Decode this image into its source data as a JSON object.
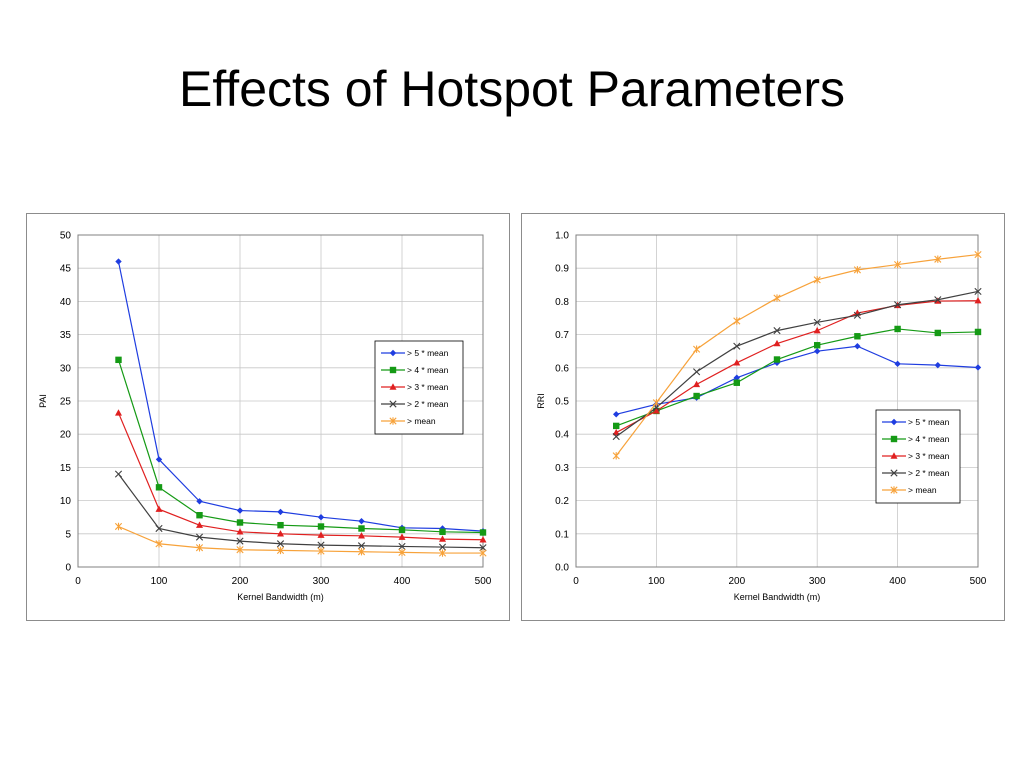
{
  "slide": {
    "title": "Effects of Hotspot Parameters"
  },
  "colors": {
    "gt5_mean": "#1f3de0",
    "gt4_mean": "#159a15",
    "gt3_mean": "#e02020",
    "gt2_mean": "#404040",
    "gt_mean": "#f7a23a",
    "gridline": "#c8c8c8",
    "plot_border": "#808080"
  },
  "chart_data": [
    {
      "type": "line",
      "title": "",
      "xlabel": "Kernel Bandwidth (m)",
      "ylabel": "PAI",
      "x": [
        50,
        100,
        150,
        200,
        250,
        300,
        350,
        400,
        450,
        500
      ],
      "xlim": [
        0,
        500
      ],
      "ylim": [
        0,
        50
      ],
      "xticks": [
        "0",
        "100",
        "200",
        "300",
        "400",
        "500"
      ],
      "yticks": [
        "0",
        "5",
        "10",
        "15",
        "20",
        "25",
        "30",
        "35",
        "40",
        "45",
        "50"
      ],
      "grid": true,
      "legend": "center-right",
      "series": [
        {
          "name": "> 5 * mean",
          "marker": "diamond",
          "values": [
            46.0,
            16.2,
            9.9,
            8.5,
            8.3,
            7.5,
            6.9,
            5.9,
            5.8,
            5.4
          ]
        },
        {
          "name": "> 4 * mean",
          "marker": "square",
          "values": [
            31.2,
            12.0,
            7.8,
            6.7,
            6.3,
            6.1,
            5.8,
            5.6,
            5.3,
            5.2
          ]
        },
        {
          "name": "> 3 * mean",
          "marker": "triangle",
          "values": [
            23.2,
            8.7,
            6.3,
            5.3,
            5.0,
            4.8,
            4.7,
            4.5,
            4.2,
            4.1
          ]
        },
        {
          "name": "> 2 * mean",
          "marker": "x",
          "values": [
            14.0,
            5.8,
            4.5,
            3.9,
            3.5,
            3.3,
            3.2,
            3.1,
            3.0,
            2.9
          ]
        },
        {
          "name": "> mean",
          "marker": "star",
          "values": [
            6.1,
            3.5,
            2.9,
            2.6,
            2.5,
            2.4,
            2.3,
            2.2,
            2.1,
            2.1
          ]
        }
      ]
    },
    {
      "type": "line",
      "title": "",
      "xlabel": "Kernel Bandwidth (m)",
      "ylabel": "RRI",
      "x": [
        50,
        100,
        150,
        200,
        250,
        300,
        350,
        400,
        450,
        500
      ],
      "xlim": [
        0,
        500
      ],
      "ylim": [
        0,
        1.0
      ],
      "xticks": [
        "0",
        "100",
        "200",
        "300",
        "400",
        "500"
      ],
      "yticks": [
        "0.0",
        "0.1",
        "0.2",
        "0.3",
        "0.4",
        "0.5",
        "0.6",
        "0.7",
        "0.8",
        "0.9",
        "1.0"
      ],
      "grid": true,
      "legend": "bottom-right",
      "series": [
        {
          "name": "> 5 * mean",
          "marker": "diamond",
          "values": [
            0.46,
            0.49,
            0.51,
            0.57,
            0.615,
            0.65,
            0.665,
            0.612,
            0.608,
            0.601
          ]
        },
        {
          "name": "> 4 * mean",
          "marker": "square",
          "values": [
            0.425,
            0.47,
            0.515,
            0.555,
            0.625,
            0.668,
            0.695,
            0.717,
            0.705,
            0.708
          ]
        },
        {
          "name": "> 3 * mean",
          "marker": "triangle",
          "values": [
            0.405,
            0.47,
            0.55,
            0.615,
            0.673,
            0.712,
            0.765,
            0.788,
            0.801,
            0.802
          ]
        },
        {
          "name": "> 2 * mean",
          "marker": "x",
          "values": [
            0.393,
            0.48,
            0.588,
            0.665,
            0.712,
            0.737,
            0.758,
            0.79,
            0.805,
            0.83
          ]
        },
        {
          "name": "> mean",
          "marker": "star",
          "values": [
            0.335,
            0.495,
            0.656,
            0.741,
            0.81,
            0.865,
            0.895,
            0.911,
            0.927,
            0.941
          ]
        }
      ]
    }
  ]
}
